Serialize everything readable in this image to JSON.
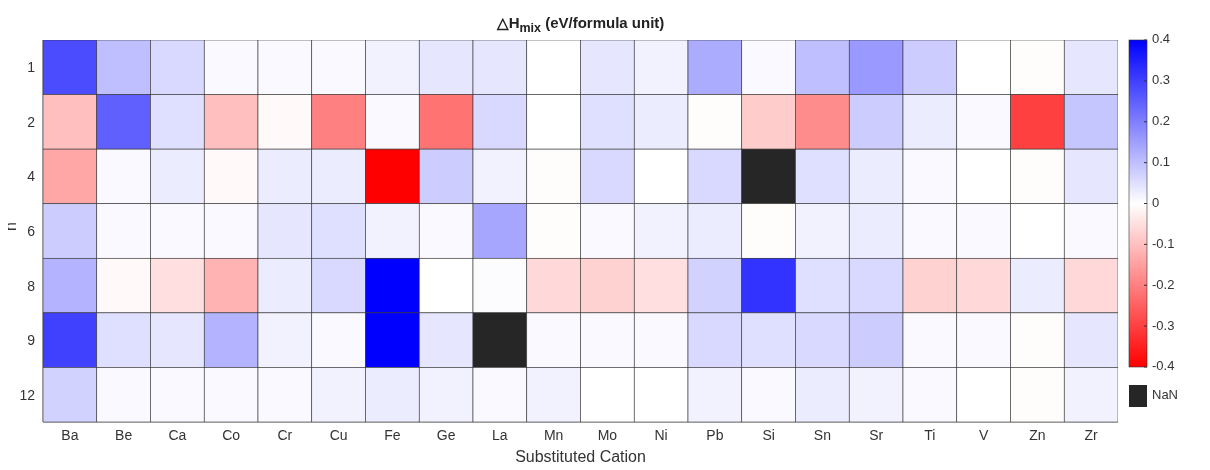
{
  "chart_data": {
    "type": "heatmap",
    "title": "△H$_{mix}$ (eV/formula unit)",
    "xlabel": "Substituted Cation",
    "ylabel": "n",
    "categories": [
      "Ba",
      "Be",
      "Ca",
      "Co",
      "Cr",
      "Cu",
      "Fe",
      "Ge",
      "La",
      "Mn",
      "Mo",
      "Ni",
      "Pb",
      "Si",
      "Sn",
      "Sr",
      "Ti",
      "V",
      "Zn",
      "Zr"
    ],
    "y_categories": [
      "1",
      "2",
      "4",
      "6",
      "8",
      "9",
      "12"
    ],
    "cells": [
      [
        0.28,
        0.1,
        0.06,
        0.01,
        0.01,
        0.01,
        0.02,
        0.04,
        0.04,
        0,
        0.04,
        0.02,
        0.13,
        0.01,
        0.1,
        0.16,
        0.08,
        0,
        -0.005,
        0.04
      ],
      [
        -0.1,
        0.25,
        0.05,
        -0.1,
        -0.01,
        -0.2,
        0.01,
        -0.22,
        0.06,
        0,
        0.05,
        0.03,
        -0.005,
        -0.08,
        -0.18,
        0.08,
        0.03,
        0.01,
        -0.3,
        0.09
      ],
      [
        -0.14,
        0.01,
        0.03,
        -0.01,
        0.03,
        0.03,
        -0.4,
        0.08,
        0.02,
        -0.005,
        0.06,
        0,
        0.06,
        null,
        0.05,
        0.03,
        0.01,
        0,
        -0.005,
        0.04
      ],
      [
        0.08,
        0.01,
        0.01,
        0.01,
        0.04,
        0.05,
        0.02,
        0.01,
        0.14,
        -0.005,
        0.01,
        0.02,
        0.03,
        -0.005,
        0.02,
        0.03,
        0.01,
        0.01,
        0,
        0.01
      ],
      [
        0.12,
        -0.01,
        -0.05,
        -0.12,
        0.03,
        0.06,
        0.4,
        0,
        0.005,
        -0.06,
        -0.07,
        -0.05,
        0.07,
        0.32,
        0.05,
        0.06,
        -0.07,
        -0.06,
        0.03,
        -0.06
      ],
      [
        0.3,
        0.05,
        0.04,
        0.12,
        0.02,
        0.01,
        0.4,
        0.04,
        null,
        0.01,
        0.01,
        0.01,
        0.06,
        0.05,
        0.06,
        0.08,
        0.01,
        0.01,
        -0.005,
        0.04
      ],
      [
        0.07,
        0.01,
        0.01,
        0.01,
        0.01,
        0.02,
        0.03,
        0.02,
        0.01,
        0.02,
        0,
        0,
        0.02,
        0.01,
        0.03,
        0.02,
        0.01,
        0,
        -0.005,
        0.02
      ]
    ],
    "clim": [
      -0.4,
      0.4
    ],
    "cticks": [
      -0.4,
      -0.3,
      -0.2,
      -0.1,
      0,
      0.1,
      0.2,
      0.3,
      0.4
    ],
    "annotations": [
      "NaN"
    ]
  }
}
